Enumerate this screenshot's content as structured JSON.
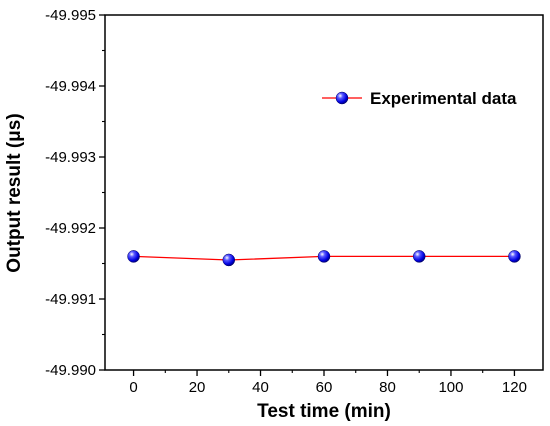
{
  "chart_data": {
    "type": "line",
    "title": "",
    "xlabel": "Test time (min)",
    "ylabel": "Output result (μs)",
    "xlim": [
      -9,
      129
    ],
    "ylim": [
      -49.99,
      -49.995
    ],
    "y_inverted": true,
    "x_ticks": [
      0,
      20,
      40,
      60,
      80,
      100,
      120
    ],
    "x_tick_labels": [
      "0",
      "20",
      "40",
      "60",
      "80",
      "100",
      "120"
    ],
    "y_ticks": [
      -49.995,
      -49.994,
      -49.993,
      -49.992,
      -49.991,
      -49.99
    ],
    "y_tick_labels": [
      "-49.995",
      "-49.994",
      "-49.993",
      "-49.992",
      "-49.991",
      "-49.990"
    ],
    "grid": false,
    "legend_position": "top-right",
    "series": [
      {
        "name": "Experimental data",
        "x": [
          0,
          30,
          60,
          90,
          120
        ],
        "y": [
          -49.9916,
          -49.99155,
          -49.9916,
          -49.9916,
          -49.9916
        ],
        "line_color": "#ff0000",
        "marker_color": "#0000ff"
      }
    ]
  }
}
